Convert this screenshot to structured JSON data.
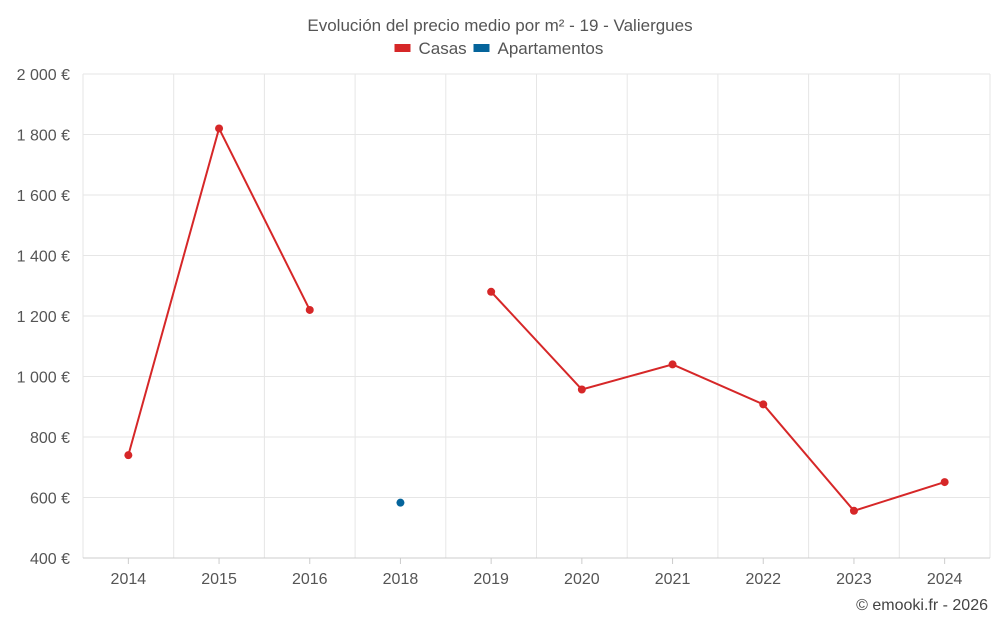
{
  "chart_data": {
    "type": "line",
    "title": "Evolución del precio medio por m² - 19 - Valiergues",
    "categories": [
      "2014",
      "2015",
      "2016",
      "2018",
      "2019",
      "2020",
      "2021",
      "2022",
      "2023",
      "2024"
    ],
    "ylim": [
      400,
      2000
    ],
    "yticks": [
      400,
      600,
      800,
      1000,
      1200,
      1400,
      1600,
      1800,
      2000
    ],
    "ytick_labels": [
      "400 €",
      "600 €",
      "800 €",
      "1 000 €",
      "1 200 €",
      "1 400 €",
      "1 600 €",
      "1 800 €",
      "2 000 €"
    ],
    "grid": true,
    "legend_position": "top-center",
    "series": [
      {
        "name": "Casas",
        "color": "#d62728",
        "values": [
          740,
          1820,
          1220,
          null,
          1280,
          957,
          1040,
          908,
          556,
          651
        ]
      },
      {
        "name": "Apartamentos",
        "color": "#05649b",
        "values": [
          null,
          null,
          null,
          583,
          null,
          null,
          null,
          null,
          null,
          null
        ]
      }
    ]
  },
  "credit": "© emooki.fr - 2026"
}
